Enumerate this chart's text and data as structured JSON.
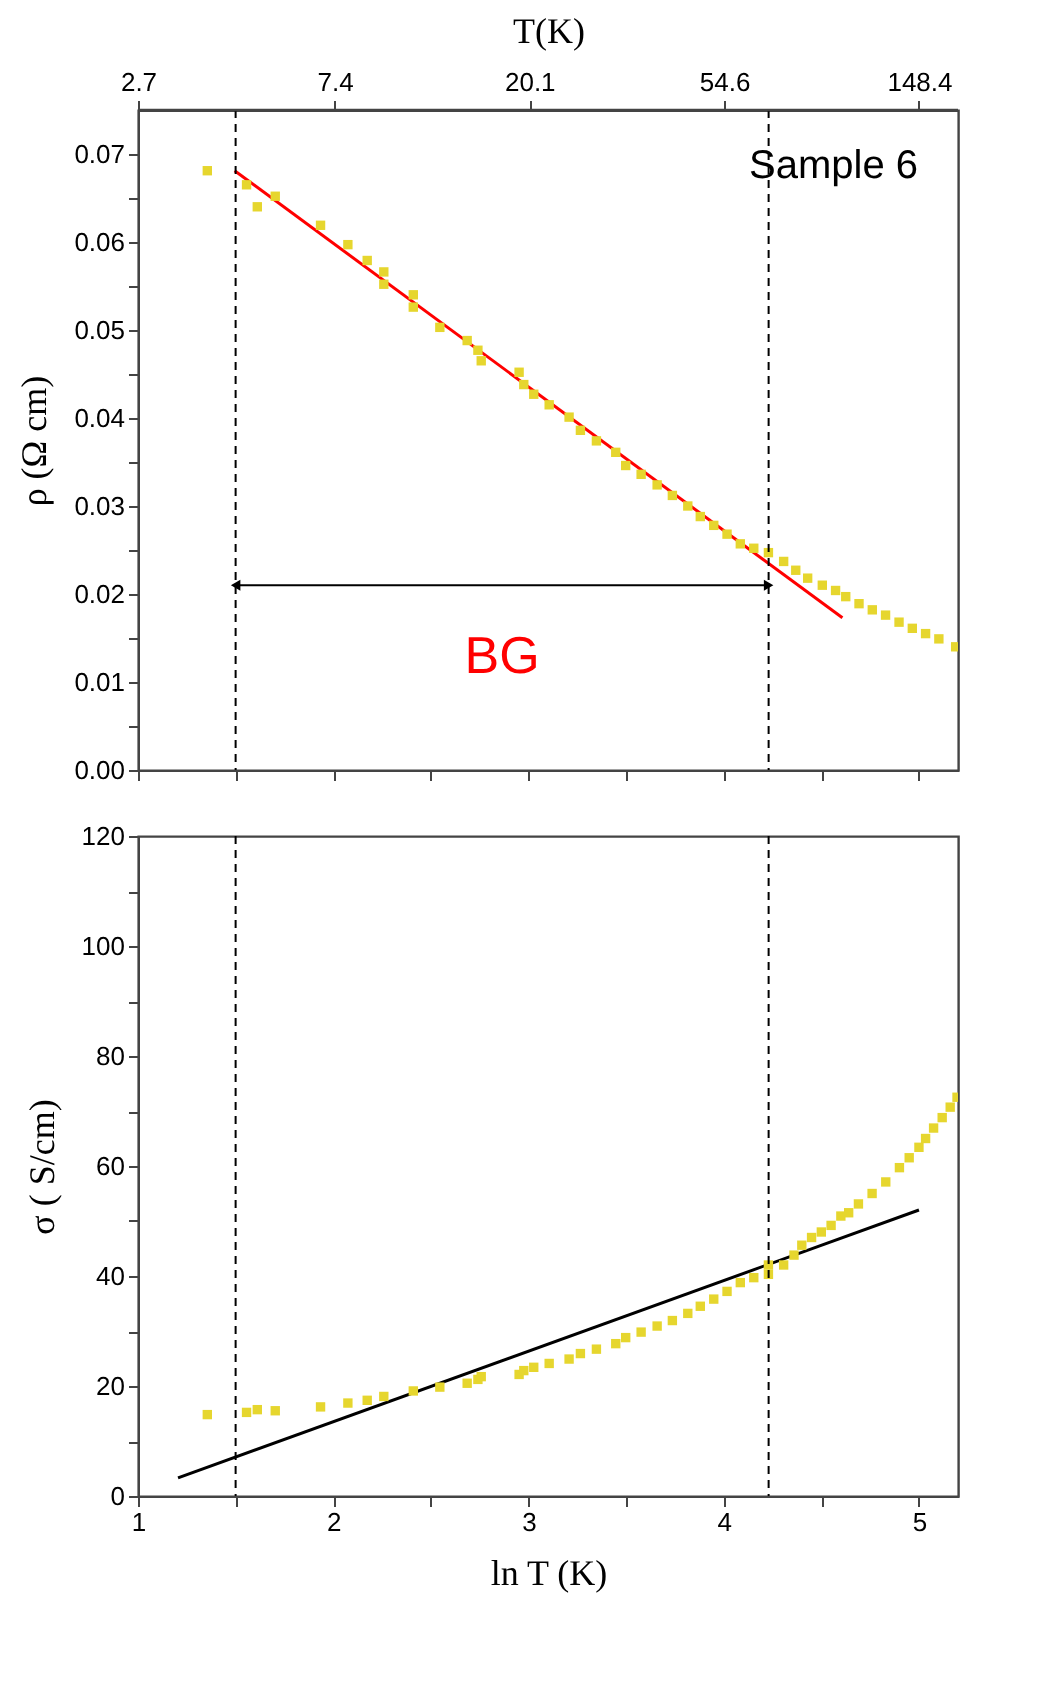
{
  "chart_data": [
    {
      "type": "scatter",
      "x2label": "T(K)",
      "ylabel": "ρ (Ω cm)",
      "xlim": [
        1,
        5.2
      ],
      "ylim": [
        0,
        0.075
      ],
      "xticks": [
        1,
        {
          "value": 1.5,
          "label": null
        },
        2,
        {
          "value": 2.5,
          "label": null
        },
        3,
        {
          "value": 3.5,
          "label": null
        },
        4,
        {
          "value": 4.5,
          "label": null
        },
        5
      ],
      "x2lim": [
        2.7,
        181.3
      ],
      "x2ticks": [
        2.7,
        7.4,
        20.1,
        54.6,
        148.4
      ],
      "log": "x2",
      "yticks": [
        "0.00",
        {
          "value": 0.005,
          "label": null
        },
        {
          "value": 0.01,
          "label": "0.01"
        },
        {
          "value": 0.015,
          "label": null
        },
        {
          "value": 0.02,
          "label": "0.02"
        },
        {
          "value": 0.025,
          "label": null
        },
        {
          "value": 0.03,
          "label": "0.03"
        },
        {
          "value": 0.035,
          "label": null
        },
        {
          "value": 0.04,
          "label": "0.04"
        },
        {
          "value": 0.045,
          "label": null
        },
        {
          "value": 0.05,
          "label": "0.05"
        },
        {
          "value": 0.055,
          "label": null
        },
        {
          "value": 0.06,
          "label": "0.06"
        },
        {
          "value": 0.065,
          "label": null
        },
        {
          "value": 0.07,
          "label": "0.07"
        }
      ],
      "tick_labels": "y",
      "series": [
        {
          "marker": "square",
          "color": "#e6d62e",
          "x": [
            1.355,
            1.556,
            1.611,
            1.703,
            1.935,
            2.075,
            2.174,
            2.259,
            2.259,
            2.41,
            2.41,
            2.546,
            2.686,
            2.741,
            2.758,
            2.952,
            2.976,
            3.027,
            3.106,
            3.208,
            3.266,
            3.348,
            3.447,
            3.498,
            3.577,
            3.659,
            3.737,
            3.816,
            3.88,
            3.949,
            4.017,
            4.085,
            4.154,
            4.229,
            4.307,
            4.369,
            4.43,
            4.505,
            4.573,
            4.625,
            4.693,
            4.761,
            4.829,
            4.898,
            4.966,
            5.034,
            5.102,
            5.188
          ],
          "values": [
            0.0681,
            0.0665,
            0.064,
            0.0652,
            0.0619,
            0.0597,
            0.0579,
            0.0566,
            0.0552,
            0.054,
            0.0526,
            0.0503,
            0.0488,
            0.0477,
            0.0465,
            0.0452,
            0.0438,
            0.0427,
            0.0415,
            0.0401,
            0.0386,
            0.0374,
            0.0361,
            0.0346,
            0.0336,
            0.0324,
            0.0312,
            0.03,
            0.0288,
            0.0278,
            0.0268,
            0.0257,
            0.0252,
            0.0247,
            0.0237,
            0.0227,
            0.0218,
            0.021,
            0.0204,
            0.0197,
            0.0189,
            0.0182,
            0.0176,
            0.0168,
            0.0161,
            0.0155,
            0.0149,
            0.014
          ]
        },
        {
          "type": "line",
          "color": "#ff0000",
          "x": [
            1.495,
            4.608
          ],
          "values": [
            0.0681,
            0.0173
          ]
        }
      ],
      "ref_lines": [
        {
          "axis": "x",
          "value": 1.5,
          "line_style": "dashed",
          "color": "#000000"
        },
        {
          "axis": "x",
          "value": 4.23,
          "line_style": "dashed",
          "color": "#000000"
        }
      ],
      "annotations": [
        "Sample 6",
        "BG"
      ]
    },
    {
      "type": "scatter",
      "xlabel": "ln T (K)",
      "ylabel": "σ ( S/cm)",
      "xlim": [
        1,
        5.2
      ],
      "ylim": [
        0,
        120
      ],
      "xticks": [
        1,
        {
          "value": 1.5,
          "label": null
        },
        2,
        {
          "value": 2.5,
          "label": null
        },
        3,
        {
          "value": 3.5,
          "label": null
        },
        4,
        {
          "value": 4.5,
          "label": null
        },
        5
      ],
      "yticks": [
        0,
        {
          "value": 10,
          "label": null
        },
        20,
        {
          "value": 30,
          "label": null
        },
        40,
        {
          "value": 50,
          "label": null
        },
        60,
        {
          "value": 70,
          "label": null
        },
        80,
        {
          "value": 90,
          "label": null
        },
        100,
        {
          "value": 110,
          "label": null
        },
        120
      ],
      "series": [
        {
          "marker": "square",
          "color": "#e6d62e",
          "x": [
            1.355,
            1.556,
            1.611,
            1.703,
            1.935,
            2.075,
            2.174,
            2.259,
            2.41,
            2.546,
            2.686,
            2.741,
            2.758,
            2.952,
            2.976,
            3.027,
            3.106,
            3.208,
            3.266,
            3.348,
            3.447,
            3.498,
            3.577,
            3.659,
            3.737,
            3.816,
            3.88,
            3.949,
            4.017,
            4.085,
            4.154,
            4.229,
            4.229,
            4.307,
            4.36,
            4.4,
            4.45,
            4.5,
            4.55,
            4.6,
            4.64,
            4.69,
            4.76,
            4.83,
            4.9,
            4.95,
            5.0,
            5.034,
            5.075,
            5.119,
            5.16,
            5.195
          ],
          "values": [
            14.8,
            15.2,
            15.7,
            15.5,
            16.2,
            16.9,
            17.4,
            18.1,
            19.1,
            19.8,
            20.5,
            21.2,
            21.7,
            22.1,
            22.8,
            23.4,
            24.1,
            24.9,
            25.9,
            26.7,
            27.7,
            28.8,
            29.8,
            30.9,
            31.9,
            33.2,
            34.5,
            35.8,
            37.2,
            38.8,
            39.7,
            40.3,
            42.0,
            42.0,
            43.8,
            45.6,
            47.0,
            48.0,
            49.2,
            50.9,
            51.5,
            53.1,
            55.0,
            57.1,
            59.7,
            61.5,
            63.4,
            65.0,
            66.9,
            68.8,
            70.7,
            72.5
          ]
        },
        {
          "type": "line",
          "color": "#000000",
          "x": [
            1.205,
            5.0
          ],
          "values": [
            3.3,
            52.0
          ]
        }
      ],
      "ref_lines": [
        {
          "axis": "x",
          "value": 1.5,
          "line_style": "dashed",
          "color": "#000000"
        },
        {
          "axis": "x",
          "value": 4.23,
          "line_style": "dashed",
          "color": "#000000"
        }
      ]
    }
  ]
}
